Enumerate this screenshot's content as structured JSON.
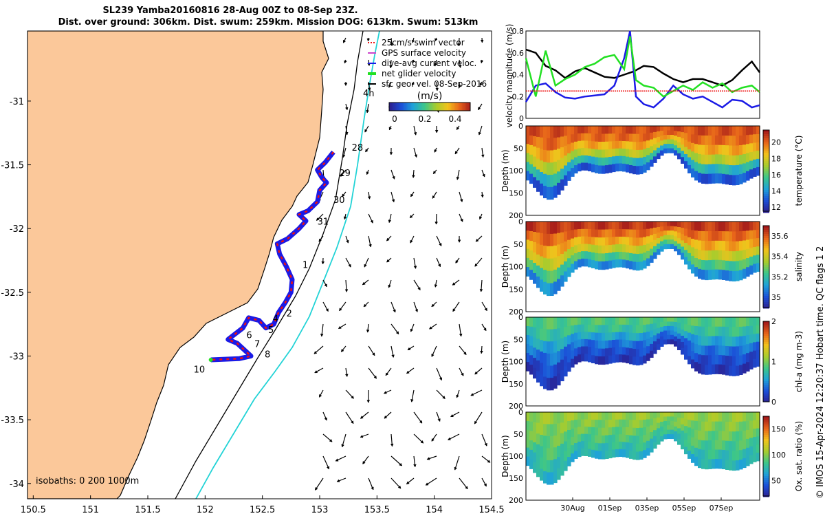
{
  "title_line1": "SL239 Yamba20160816 28-Aug 00Z to 08-Sep 23Z.",
  "title_line2": "Dist. over ground: 306km. Dist. swum: 259km. Mission DOG: 613km. Swum: 513km",
  "copyright": "© IMOS 15-Apr-2024 12:20:37 Hobart time. QC flags 1  2",
  "colors": {
    "land": "#fbc89a",
    "track_red": "#ee1111",
    "track_blue": "#1a1ae6",
    "isobath_cyan": "#22d3d6",
    "green": "#22e022"
  },
  "chart_data": [
    {
      "type": "map",
      "x_ticks": [
        "150.5",
        "151",
        "151.5",
        "152",
        "152.5",
        "153",
        "153.5",
        "154",
        "154.5"
      ],
      "y_ticks": [
        "-31",
        "-31.5",
        "-32",
        "-32.5",
        "-33",
        "-33.5",
        "-34"
      ],
      "xlim": [
        150.45,
        154.5
      ],
      "ylim": [
        -34.12,
        -30.45
      ],
      "legend": {
        "items": [
          "25cm/s swim vector",
          "GPS surface velocity",
          "dive-avg current veloc.",
          "net glider velocity",
          "sfc geo. vel. 08-Sep-2016"
        ],
        "colorbar_label": "(m/s)",
        "colorbar_ticks": [
          "0",
          "0.2",
          "0.4"
        ]
      },
      "isobath_label": "isobaths: 0   200  1000m",
      "annotation_4h": "4h",
      "day_labels": [
        {
          "text": "28",
          "lon": 153.28,
          "lat": -31.39
        },
        {
          "text": "29",
          "lon": 153.17,
          "lat": -31.59
        },
        {
          "text": "30",
          "lon": 153.12,
          "lat": -31.8
        },
        {
          "text": "31",
          "lon": 152.98,
          "lat": -31.97
        },
        {
          "text": "1",
          "lon": 152.85,
          "lat": -32.31
        },
        {
          "text": "2",
          "lon": 152.71,
          "lat": -32.69
        },
        {
          "text": "4",
          "lon": 152.59,
          "lat": -32.73
        },
        {
          "text": "5",
          "lon": 152.55,
          "lat": -32.82
        },
        {
          "text": "6",
          "lon": 152.36,
          "lat": -32.86
        },
        {
          "text": "7",
          "lon": 152.43,
          "lat": -32.93
        },
        {
          "text": "8",
          "lon": 152.52,
          "lat": -33.01
        },
        {
          "text": "10",
          "lon": 151.9,
          "lat": -33.13
        }
      ],
      "track": [
        [
          153.12,
          -31.4
        ],
        [
          153.05,
          -31.48
        ],
        [
          152.98,
          -31.54
        ],
        [
          153.02,
          -31.6
        ],
        [
          153.06,
          -31.64
        ],
        [
          153.0,
          -31.7
        ],
        [
          152.98,
          -31.79
        ],
        [
          152.9,
          -31.86
        ],
        [
          152.82,
          -31.89
        ],
        [
          152.88,
          -31.94
        ],
        [
          152.82,
          -32.0
        ],
        [
          152.72,
          -32.08
        ],
        [
          152.63,
          -32.12
        ],
        [
          152.65,
          -32.2
        ],
        [
          152.71,
          -32.3
        ],
        [
          152.76,
          -32.4
        ],
        [
          152.75,
          -32.5
        ],
        [
          152.7,
          -32.58
        ],
        [
          152.64,
          -32.66
        ],
        [
          152.6,
          -32.75
        ],
        [
          152.53,
          -32.78
        ],
        [
          152.47,
          -32.72
        ],
        [
          152.38,
          -32.7
        ],
        [
          152.33,
          -32.78
        ],
        [
          152.2,
          -32.87
        ],
        [
          152.28,
          -32.9
        ],
        [
          152.34,
          -32.95
        ],
        [
          152.4,
          -33.0
        ],
        [
          152.3,
          -33.02
        ],
        [
          152.05,
          -33.03
        ]
      ]
    },
    {
      "type": "line",
      "ylabel": "velocity magnitude (m/s)",
      "ylim": [
        0,
        0.8
      ],
      "y_ticks": [
        "0",
        "0.2",
        "0.4",
        "0.6",
        "0.8"
      ],
      "xlim_days": [
        0,
        11.9
      ],
      "series": [
        {
          "color": "#000000",
          "days": [
            0,
            0.5,
            1,
            1.5,
            2,
            2.5,
            3,
            3.5,
            4,
            4.5,
            5,
            5.5,
            6,
            6.5,
            7,
            7.5,
            8,
            8.5,
            9,
            9.5,
            10,
            10.5,
            11,
            11.5,
            11.9
          ],
          "values": [
            0.63,
            0.6,
            0.48,
            0.44,
            0.37,
            0.43,
            0.46,
            0.42,
            0.38,
            0.37,
            0.4,
            0.43,
            0.48,
            0.47,
            0.41,
            0.36,
            0.33,
            0.36,
            0.36,
            0.33,
            0.3,
            0.35,
            0.44,
            0.52,
            0.42
          ]
        },
        {
          "color": "#1a1ae6",
          "days": [
            0,
            0.5,
            1,
            1.5,
            2,
            2.5,
            3,
            3.5,
            4,
            4.5,
            5,
            5.3,
            5.6,
            6,
            6.5,
            7,
            7.5,
            8,
            8.5,
            9,
            9.5,
            10,
            10.5,
            11,
            11.5,
            11.9
          ],
          "values": [
            0.15,
            0.3,
            0.32,
            0.24,
            0.19,
            0.18,
            0.2,
            0.21,
            0.22,
            0.3,
            0.55,
            0.8,
            0.2,
            0.13,
            0.1,
            0.18,
            0.3,
            0.22,
            0.18,
            0.2,
            0.15,
            0.1,
            0.17,
            0.16,
            0.1,
            0.12
          ]
        },
        {
          "color": "#22e022",
          "days": [
            0,
            0.5,
            1,
            1.5,
            2,
            2.5,
            3,
            3.5,
            4,
            4.5,
            5,
            5.3,
            5.6,
            6,
            6.5,
            7,
            7.5,
            8,
            8.5,
            9,
            9.5,
            10,
            10.5,
            11,
            11.5,
            11.9
          ],
          "values": [
            0.55,
            0.2,
            0.62,
            0.3,
            0.36,
            0.4,
            0.47,
            0.5,
            0.56,
            0.58,
            0.45,
            0.75,
            0.35,
            0.3,
            0.28,
            0.2,
            0.25,
            0.3,
            0.26,
            0.33,
            0.28,
            0.32,
            0.24,
            0.28,
            0.3,
            0.24
          ]
        },
        {
          "color": "#ee1111",
          "days": [
            0,
            11.9
          ],
          "values": [
            0.25,
            0.25
          ]
        }
      ]
    },
    {
      "type": "heatmap",
      "variable": "temperature",
      "colorbar_label": "temperature (°C)",
      "ylabel": "Depth (m)",
      "y_ticks": [
        "0",
        "50",
        "100",
        "150",
        "200"
      ],
      "colorbar_ticks": [
        "12",
        "14",
        "16",
        "18",
        "20"
      ],
      "clim": [
        11.5,
        21.5
      ],
      "layers": [
        20.5,
        20,
        19,
        17.5,
        15,
        13
      ]
    },
    {
      "type": "heatmap",
      "variable": "salinity",
      "colorbar_label": "salinity",
      "ylabel": "Depth (m)",
      "y_ticks": [
        "0",
        "50",
        "100",
        "150",
        "200"
      ],
      "colorbar_ticks": [
        "35",
        "35.2",
        "35.4",
        "35.6"
      ],
      "clim": [
        34.9,
        35.7
      ],
      "layers": [
        35.65,
        35.58,
        35.5,
        35.4,
        35.25,
        35.1
      ]
    },
    {
      "type": "heatmap",
      "variable": "chl-a",
      "colorbar_label": "chl-a (mg m-3)",
      "ylabel": "Depth (m)",
      "y_ticks": [
        "0",
        "50",
        "100",
        "150",
        "200"
      ],
      "colorbar_ticks": [
        "0",
        "1",
        "2"
      ],
      "clim": [
        0,
        2
      ],
      "layers": [
        0.9,
        0.8,
        0.6,
        0.4,
        0.25,
        0.15
      ]
    },
    {
      "type": "heatmap",
      "variable": "oxygen",
      "colorbar_label": "Ox. sat. ratio (%)",
      "ylabel": "Depth (m)",
      "y_ticks": [
        "0",
        "50",
        "100",
        "150",
        "200"
      ],
      "colorbar_ticks": [
        "50",
        "100",
        "150"
      ],
      "clim": [
        20,
        175
      ],
      "layers": [
        105,
        100,
        95,
        88,
        80,
        72
      ],
      "x_ticks": [
        "30Aug",
        "01Sep",
        "03Sep",
        "05Sep",
        "07Sep"
      ]
    }
  ]
}
